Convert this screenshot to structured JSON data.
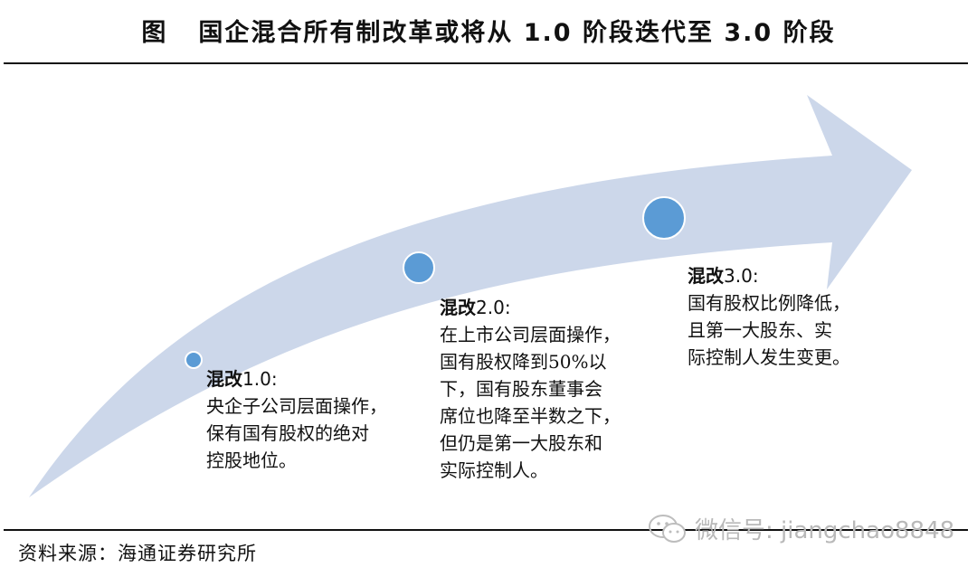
{
  "title": {
    "fig_label": "图",
    "text": "国企混合所有制改革或将从 1.0 阶段迭代至 3.0 阶段"
  },
  "colors": {
    "arrow_fill": "#ccd7ea",
    "dot_fill": "#5b9bd5",
    "dot_stroke": "#ffffff"
  },
  "stages": [
    {
      "head": "混改",
      "version": "1.0",
      "colon": ":",
      "lines": [
        "央企子公司层面操作，",
        "保有国有股权的绝对",
        "控股地位。"
      ]
    },
    {
      "head": "混改",
      "version": "2.0",
      "colon": ":",
      "lines": [
        "在上市公司层面操作，",
        "国有股权降到50%以",
        "下，国有股东董事会",
        "席位也降至半数之下，",
        "但仍是第一大股东和",
        "实际控制人。"
      ]
    },
    {
      "head": "混改",
      "version": "3.0",
      "colon": ":",
      "lines": [
        "国有股权比例降低，",
        "且第一大股东、实",
        "际控制人发生变更。"
      ]
    }
  ],
  "source": "资料来源：海通证券研究所",
  "watermark": {
    "icon": "wechat-icon",
    "text": "微信号: jiangchao8848"
  }
}
